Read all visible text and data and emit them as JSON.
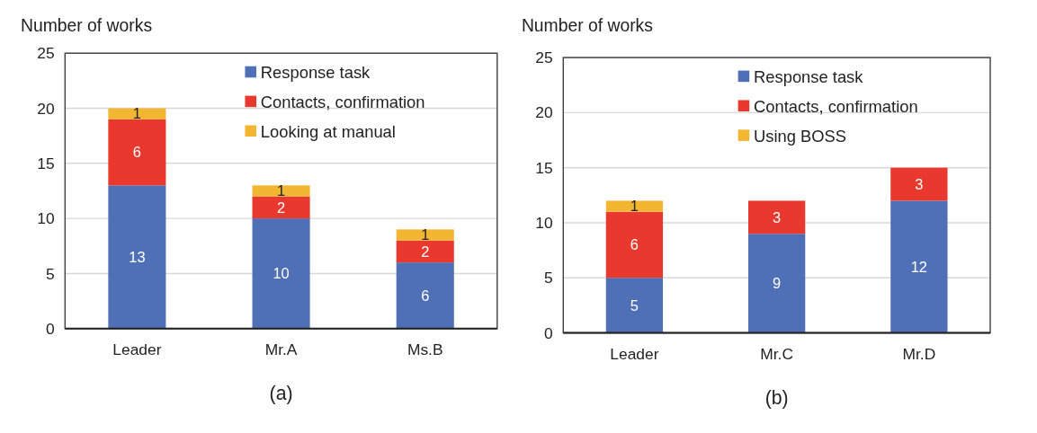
{
  "chart_data": [
    {
      "type": "bar",
      "stacked": true,
      "ylabel": "Number of works",
      "categories": [
        "Leader",
        "Mr.A",
        "Ms.B"
      ],
      "ylim": [
        0,
        25
      ],
      "yticks": [
        0,
        5,
        10,
        15,
        20,
        25
      ],
      "grid": "y",
      "legend": "top right",
      "data_labels": true,
      "annotations": [
        "(a)"
      ],
      "series": [
        {
          "name": "Response task",
          "color": "#4f6fb7",
          "values": [
            13,
            10,
            6
          ]
        },
        {
          "name": "Contacts, confirmation",
          "color": "#e9392e",
          "values": [
            6,
            2,
            2
          ]
        },
        {
          "name": "Looking at manual",
          "color": "#f2b632",
          "values": [
            1,
            1,
            1
          ]
        }
      ]
    },
    {
      "type": "bar",
      "stacked": true,
      "ylabel": "Number of works",
      "categories": [
        "Leader",
        "Mr.C",
        "Mr.D"
      ],
      "ylim": [
        0,
        25
      ],
      "yticks": [
        0,
        5,
        10,
        15,
        20,
        25
      ],
      "grid": "y",
      "legend": "top right",
      "data_labels": true,
      "annotations": [
        "(b)"
      ],
      "series": [
        {
          "name": "Response task",
          "color": "#4f6fb7",
          "values": [
            5,
            9,
            12
          ]
        },
        {
          "name": "Contacts, confirmation",
          "color": "#e9392e",
          "values": [
            6,
            3,
            3
          ]
        },
        {
          "name": "Using BOSS",
          "color": "#f2b632",
          "values": [
            1,
            null,
            null
          ]
        }
      ]
    }
  ]
}
